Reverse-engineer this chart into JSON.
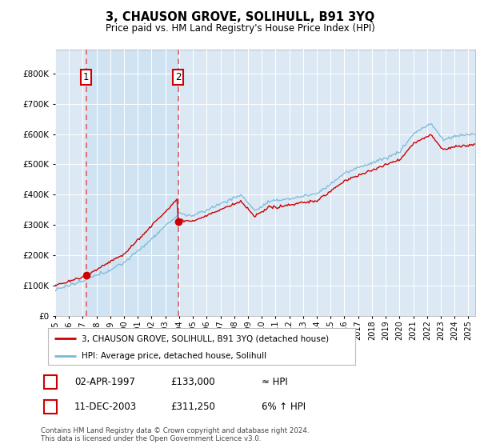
{
  "title": "3, CHAUSON GROVE, SOLIHULL, B91 3YQ",
  "subtitle": "Price paid vs. HM Land Registry's House Price Index (HPI)",
  "ylim": [
    0,
    880000
  ],
  "yticks": [
    0,
    100000,
    200000,
    300000,
    400000,
    500000,
    600000,
    700000,
    800000
  ],
  "ytick_labels": [
    "£0",
    "£100K",
    "£200K",
    "£300K",
    "£400K",
    "£500K",
    "£600K",
    "£700K",
    "£800K"
  ],
  "xmin": 1995.0,
  "xmax": 2025.5,
  "bg_color": "#dce9f5",
  "shade_color": "#c8dff0",
  "grid_color": "#ffffff",
  "sale1_date": 1997.25,
  "sale1_price": 133000,
  "sale2_date": 2003.92,
  "sale2_price": 311250,
  "sale1_label": "1",
  "sale2_label": "2",
  "legend_line1": "3, CHAUSON GROVE, SOLIHULL, B91 3YQ (detached house)",
  "legend_line2": "HPI: Average price, detached house, Solihull",
  "table_row1": [
    "1",
    "02-APR-1997",
    "£133,000",
    "≈ HPI"
  ],
  "table_row2": [
    "2",
    "11-DEC-2003",
    "£311,250",
    "6% ↑ HPI"
  ],
  "footnote": "Contains HM Land Registry data © Crown copyright and database right 2024.\nThis data is licensed under the Open Government Licence v3.0.",
  "hpi_line_color": "#7ab8d8",
  "price_line_color": "#cc0000",
  "sale_marker_color": "#cc0000",
  "dashed_line_color": "#e06060"
}
